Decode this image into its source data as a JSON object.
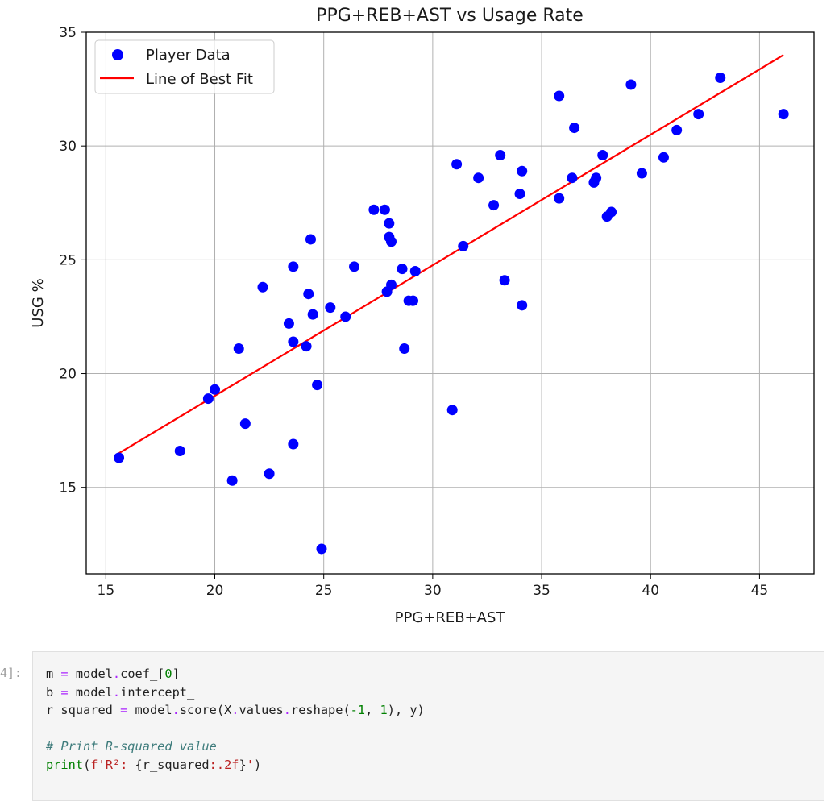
{
  "chart_data": {
    "type": "scatter",
    "title": "PPG+REB+AST vs Usage Rate",
    "xlabel": "PPG+REB+AST",
    "ylabel": "USG %",
    "xlim": [
      14.1,
      47.5
    ],
    "ylim": [
      11.2,
      35.0
    ],
    "x_ticks": [
      "15",
      "20",
      "25",
      "30",
      "35",
      "40",
      "45"
    ],
    "y_ticks": [
      "15",
      "20",
      "25",
      "30",
      "35"
    ],
    "grid": true,
    "legend_position": "top-left",
    "series": [
      {
        "name": "Player Data",
        "kind": "scatter",
        "color": "#0000ff",
        "points": [
          [
            15.6,
            16.3
          ],
          [
            18.4,
            16.6
          ],
          [
            19.7,
            18.9
          ],
          [
            20.0,
            19.3
          ],
          [
            20.8,
            15.3
          ],
          [
            21.1,
            21.1
          ],
          [
            21.4,
            17.8
          ],
          [
            22.2,
            23.8
          ],
          [
            22.5,
            15.6
          ],
          [
            23.4,
            22.2
          ],
          [
            23.6,
            24.7
          ],
          [
            23.6,
            21.4
          ],
          [
            23.6,
            16.9
          ],
          [
            24.2,
            21.2
          ],
          [
            24.3,
            23.5
          ],
          [
            24.4,
            25.9
          ],
          [
            24.5,
            22.6
          ],
          [
            24.7,
            19.5
          ],
          [
            24.9,
            12.3
          ],
          [
            25.3,
            22.9
          ],
          [
            26.0,
            22.5
          ],
          [
            26.4,
            24.7
          ],
          [
            27.3,
            27.2
          ],
          [
            27.8,
            27.2
          ],
          [
            27.9,
            23.6
          ],
          [
            28.0,
            26.6
          ],
          [
            28.0,
            26.0
          ],
          [
            28.1,
            25.8
          ],
          [
            28.1,
            23.9
          ],
          [
            28.6,
            24.6
          ],
          [
            28.7,
            21.1
          ],
          [
            28.9,
            23.2
          ],
          [
            29.1,
            23.2
          ],
          [
            29.2,
            24.5
          ],
          [
            30.9,
            18.4
          ],
          [
            31.1,
            29.2
          ],
          [
            31.4,
            25.6
          ],
          [
            32.1,
            28.6
          ],
          [
            32.8,
            27.4
          ],
          [
            33.1,
            29.6
          ],
          [
            33.3,
            24.1
          ],
          [
            34.0,
            27.9
          ],
          [
            34.1,
            28.9
          ],
          [
            34.1,
            23.0
          ],
          [
            35.8,
            32.2
          ],
          [
            35.8,
            27.7
          ],
          [
            36.4,
            28.6
          ],
          [
            36.5,
            30.8
          ],
          [
            37.4,
            28.4
          ],
          [
            37.5,
            28.6
          ],
          [
            37.8,
            29.6
          ],
          [
            38.0,
            26.9
          ],
          [
            38.2,
            27.1
          ],
          [
            39.1,
            32.7
          ],
          [
            39.6,
            28.8
          ],
          [
            40.6,
            29.5
          ],
          [
            41.2,
            30.7
          ],
          [
            42.2,
            31.4
          ],
          [
            43.2,
            33.0
          ],
          [
            46.1,
            31.4
          ]
        ]
      },
      {
        "name": "Line of Best Fit",
        "kind": "line",
        "color": "#ff0000",
        "points": [
          [
            15.6,
            16.5
          ],
          [
            46.1,
            34.0
          ]
        ]
      }
    ]
  },
  "cell": {
    "prompt": "4]:",
    "code_lines": [
      [
        {
          "t": "m ",
          "c": "name"
        },
        {
          "t": "=",
          "c": "op"
        },
        {
          "t": " model",
          "c": "name"
        },
        {
          "t": ".",
          "c": "op"
        },
        {
          "t": "coef_[",
          "c": "name"
        },
        {
          "t": "0",
          "c": "num"
        },
        {
          "t": "]",
          "c": "name"
        }
      ],
      [
        {
          "t": "b ",
          "c": "name"
        },
        {
          "t": "=",
          "c": "op"
        },
        {
          "t": " model",
          "c": "name"
        },
        {
          "t": ".",
          "c": "op"
        },
        {
          "t": "intercept_",
          "c": "name"
        }
      ],
      [
        {
          "t": "r_squared ",
          "c": "name"
        },
        {
          "t": "=",
          "c": "op"
        },
        {
          "t": " model",
          "c": "name"
        },
        {
          "t": ".",
          "c": "op"
        },
        {
          "t": "score(X",
          "c": "name"
        },
        {
          "t": ".",
          "c": "op"
        },
        {
          "t": "values",
          "c": "name"
        },
        {
          "t": ".",
          "c": "op"
        },
        {
          "t": "reshape(",
          "c": "name"
        },
        {
          "t": "-1",
          "c": "num"
        },
        {
          "t": ", ",
          "c": "name"
        },
        {
          "t": "1",
          "c": "num"
        },
        {
          "t": "), y)",
          "c": "name"
        }
      ],
      [],
      [
        {
          "t": "# Print R-squared value",
          "c": "com"
        }
      ],
      [
        {
          "t": "print",
          "c": "builtin"
        },
        {
          "t": "(",
          "c": "name"
        },
        {
          "t": "f'R²: ",
          "c": "str"
        },
        {
          "t": "{r_squared",
          "c": "name"
        },
        {
          "t": ":.2f",
          "c": "str"
        },
        {
          "t": "}",
          "c": "name"
        },
        {
          "t": "'",
          "c": "str"
        },
        {
          "t": ")",
          "c": "name"
        }
      ]
    ]
  }
}
